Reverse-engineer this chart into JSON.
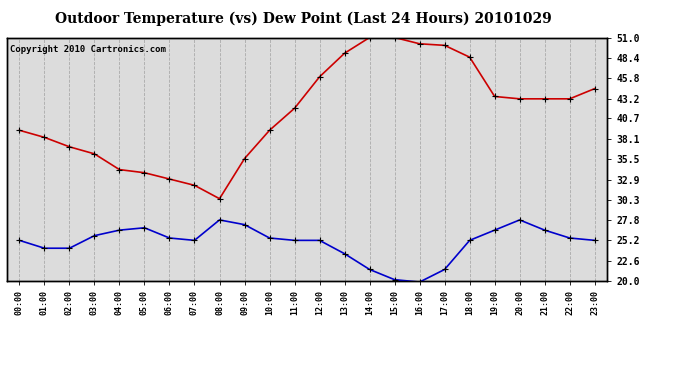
{
  "title": "Outdoor Temperature (vs) Dew Point (Last 24 Hours) 20101029",
  "copyright_text": "Copyright 2010 Cartronics.com",
  "x_labels": [
    "00:00",
    "01:00",
    "02:00",
    "03:00",
    "04:00",
    "05:00",
    "06:00",
    "07:00",
    "08:00",
    "09:00",
    "10:00",
    "11:00",
    "12:00",
    "13:00",
    "14:00",
    "15:00",
    "16:00",
    "17:00",
    "18:00",
    "19:00",
    "20:00",
    "21:00",
    "22:00",
    "23:00"
  ],
  "temp_data": [
    39.2,
    38.3,
    37.1,
    36.2,
    34.2,
    33.8,
    33.0,
    32.2,
    30.5,
    35.6,
    39.2,
    42.0,
    46.0,
    49.0,
    51.0,
    51.0,
    50.2,
    50.0,
    48.5,
    43.5,
    43.2,
    43.2,
    43.2,
    44.5
  ],
  "dew_data": [
    25.2,
    24.2,
    24.2,
    25.8,
    26.5,
    26.8,
    25.5,
    25.2,
    27.8,
    27.2,
    25.5,
    25.2,
    25.2,
    23.5,
    21.5,
    20.2,
    19.9,
    21.5,
    25.2,
    26.5,
    27.8,
    26.5,
    25.5,
    25.2
  ],
  "y_ticks": [
    20.0,
    22.6,
    25.2,
    27.8,
    30.3,
    32.9,
    35.5,
    38.1,
    40.7,
    43.2,
    45.8,
    48.4,
    51.0
  ],
  "y_min": 20.0,
  "y_max": 51.0,
  "temp_color": "#cc0000",
  "dew_color": "#0000cc",
  "bg_color": "#ffffff",
  "plot_bg_color": "#dcdcdc",
  "grid_color": "#aaaaaa",
  "title_fontsize": 10,
  "copyright_fontsize": 6.5,
  "marker": "+",
  "marker_size": 5,
  "line_width": 1.2
}
